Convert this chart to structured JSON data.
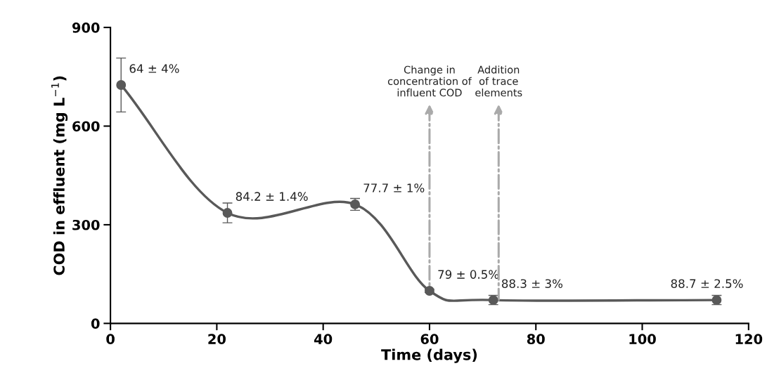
{
  "chart_data": {
    "type": "line",
    "xlabel": "Time (days)",
    "ylabel": "COD in effluent (mg L$^{−1}$)",
    "x": [
      2,
      22,
      46,
      60,
      72,
      114
    ],
    "series": [
      {
        "color": "#595959",
        "values": [
          725,
          336,
          362,
          99,
          71,
          71
        ],
        "errors": [
          82,
          30,
          18,
          5,
          14,
          14
        ]
      }
    ],
    "xlim": [
      0,
      120
    ],
    "xticks": [
      0,
      20,
      40,
      60,
      80,
      100,
      120
    ],
    "ylim": [
      0,
      900
    ],
    "yticks": [
      0,
      300,
      600,
      900
    ],
    "marker": "circle",
    "line_style": "solid",
    "grid": false,
    "legend": false,
    "annotations": [
      {
        "text": "64 ± 4%",
        "x": 2,
        "y": 725
      },
      {
        "text": "84.2 ± 1.4%",
        "x": 22,
        "y": 336
      },
      {
        "text": "77.7 ± 1%",
        "x": 46,
        "y": 362
      },
      {
        "text": "79 ± 0.5%",
        "x": 60,
        "y": 99
      },
      {
        "text": "88.3 ± 3%",
        "x": 72,
        "y": 71
      },
      {
        "text": "88.7 ± 2.5%",
        "x": 114,
        "y": 71
      },
      {
        "text": "Change in\nconcentration of\ninfluent COD",
        "x": 60,
        "y": 99
      },
      {
        "text": "Addition\nof trace\nelements",
        "x": 73,
        "y": 71
      }
    ]
  }
}
